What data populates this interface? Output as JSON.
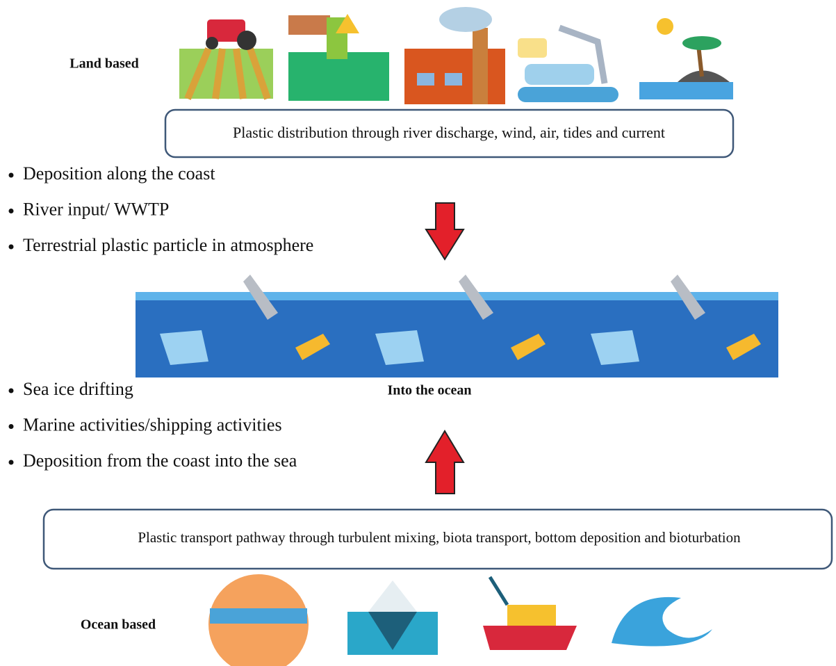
{
  "land_label": "Land based",
  "land_box": "Plastic distribution through river discharge, wind, air, tides and current",
  "land_bullets": [
    "Deposition along the coast",
    "River input/ WWTP",
    "Terrestrial plastic particle in atmosphere"
  ],
  "ocean_caption": "Into the ocean",
  "ocean_bullets": [
    "Sea ice drifting",
    "Marine activities/shipping activities",
    "Deposition from the coast into the sea"
  ],
  "ocean_box": "Plastic transport pathway through turbulent mixing, biota transport, bottom deposition and bioturbation",
  "ocean_label": "Ocean based"
}
